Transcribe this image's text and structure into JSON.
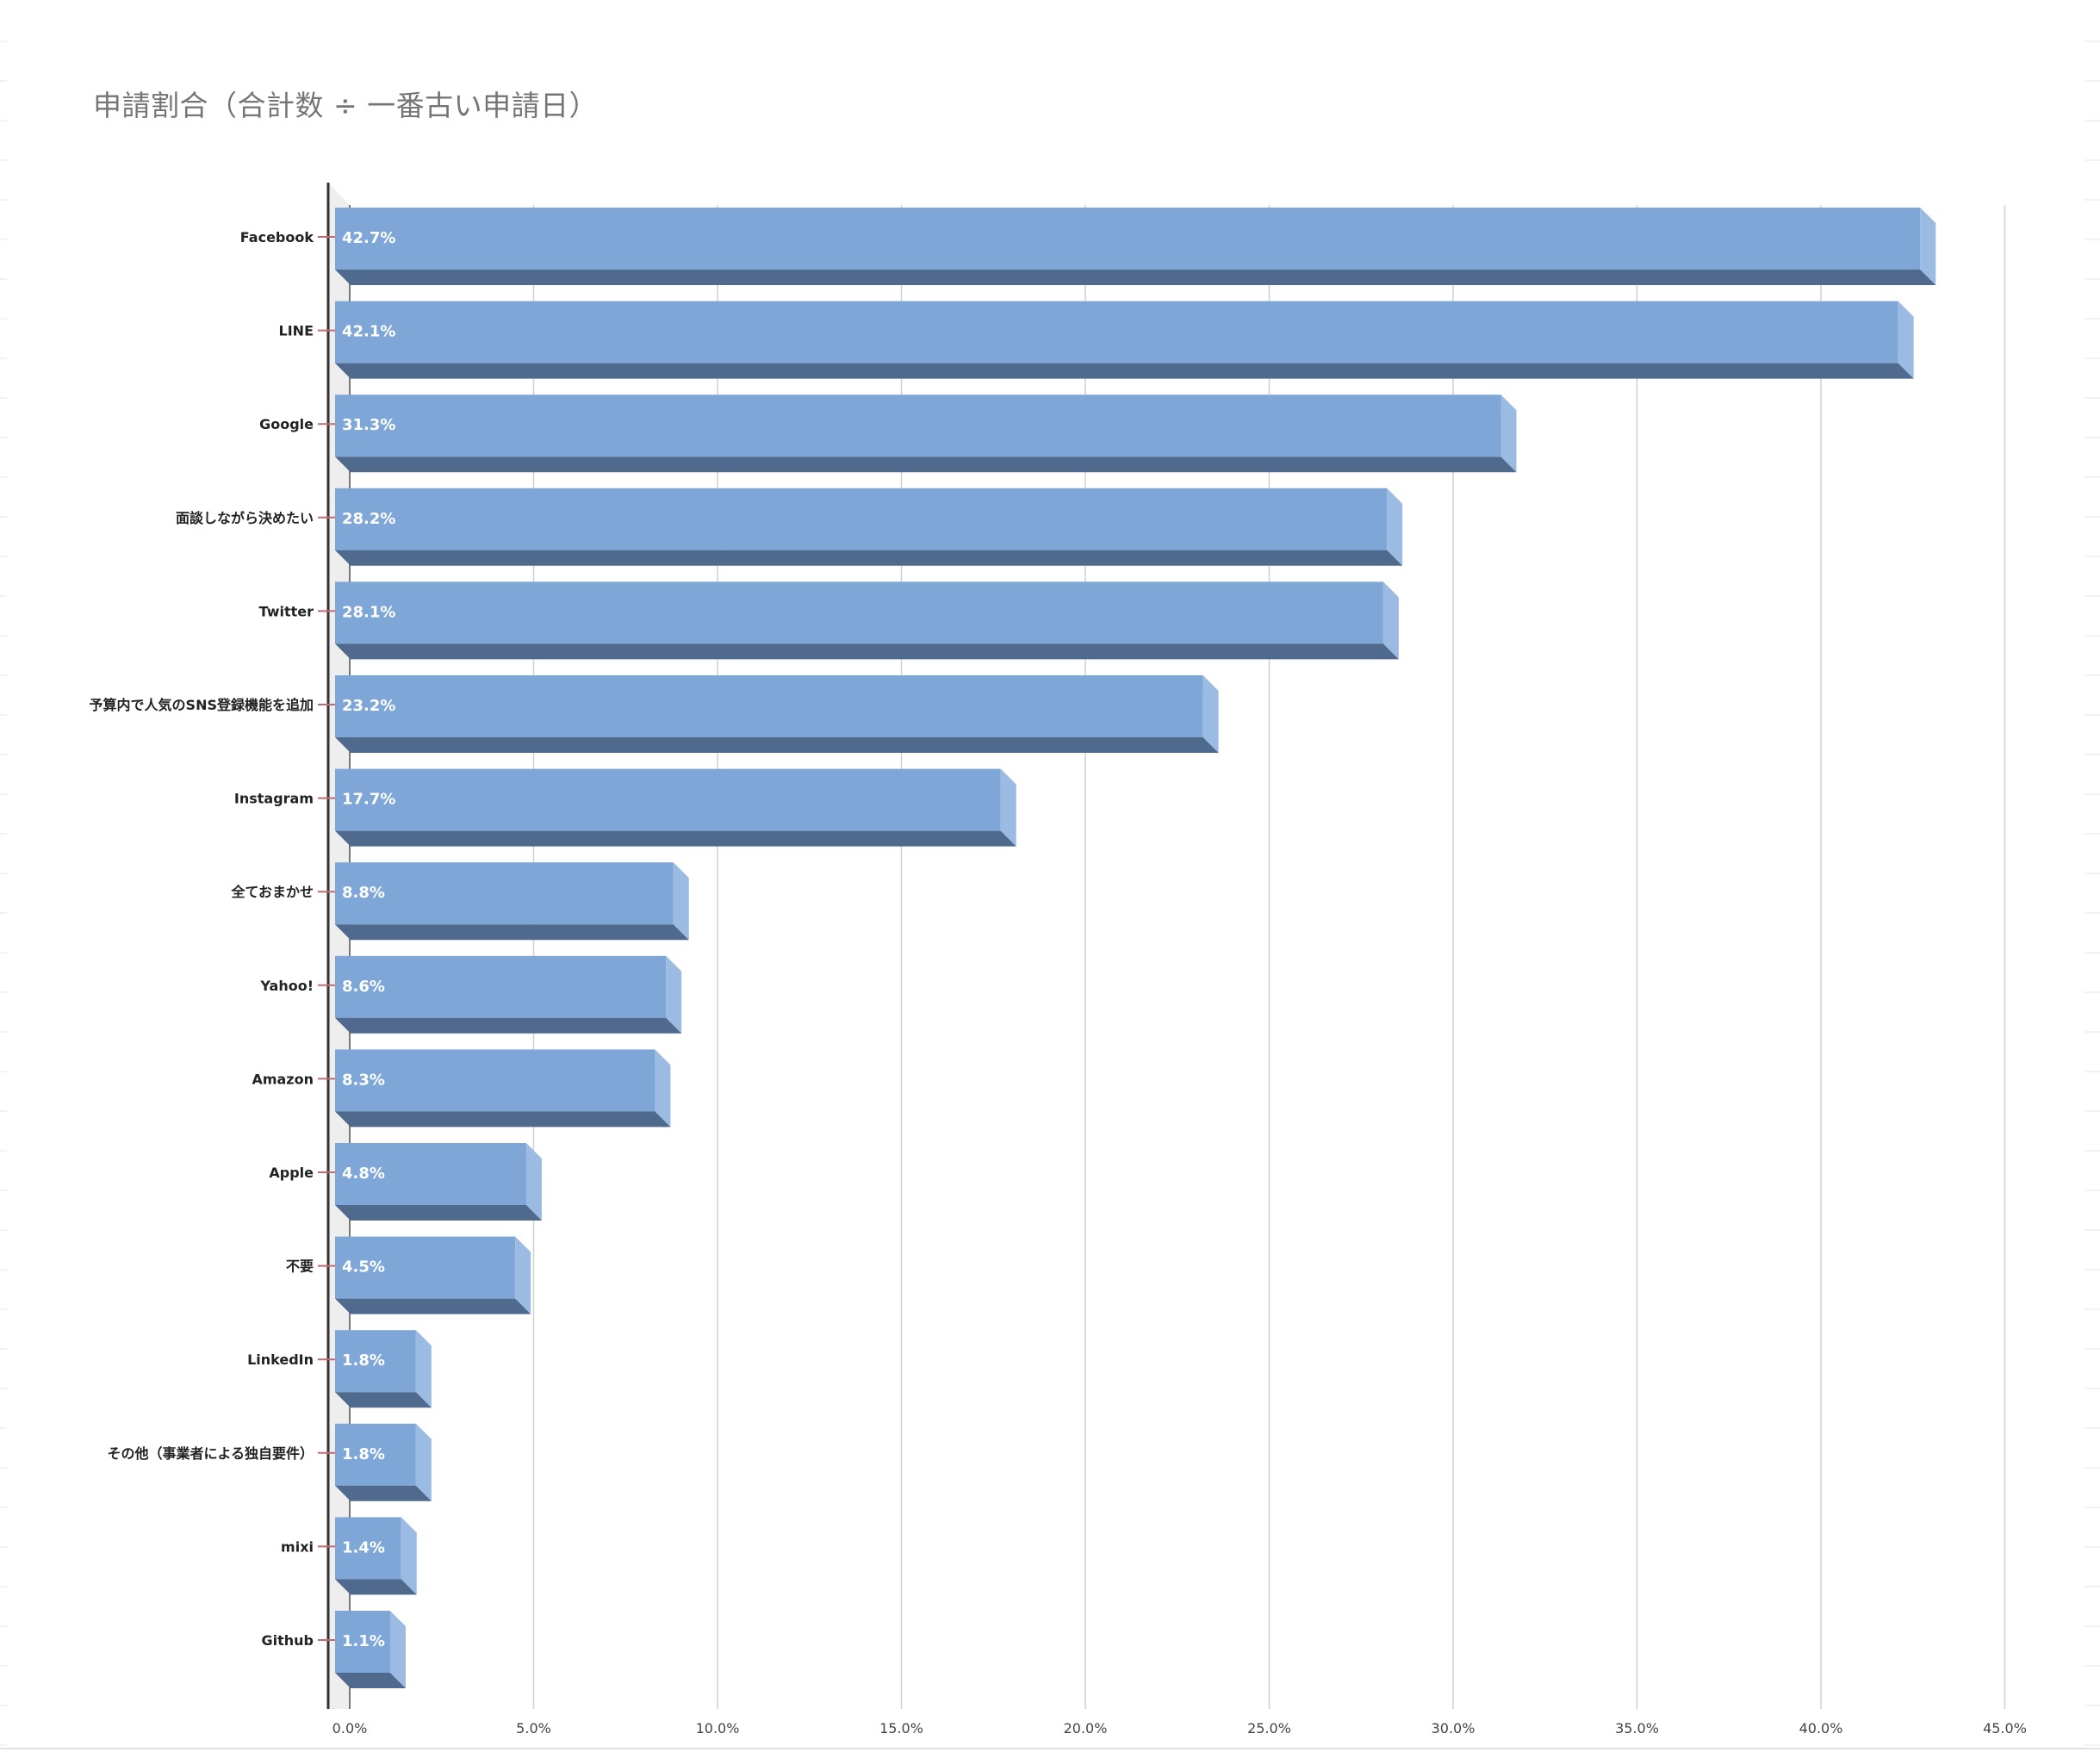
{
  "chart_data": {
    "type": "bar",
    "orientation": "horizontal",
    "style": "3d",
    "title": "申請割合（合計数 ÷ 一番古い申請日）",
    "xlabel": "",
    "ylabel": "",
    "categories": [
      "Facebook",
      "LINE",
      "Google",
      "面談しながら決めたい",
      "Twitter",
      "予算内で人気のSNS登録機能を追加",
      "Instagram",
      "全ておまかせ",
      "Yahoo!",
      "Amazon",
      "Apple",
      "不要",
      "LinkedIn",
      "その他（事業者による独自要件）",
      "mixi",
      "Github"
    ],
    "values": [
      42.7,
      42.1,
      31.3,
      28.2,
      28.1,
      23.2,
      17.7,
      8.8,
      8.6,
      8.3,
      4.8,
      4.5,
      1.8,
      1.8,
      1.4,
      1.1
    ],
    "value_labels": [
      "42.7%",
      "42.1%",
      "31.3%",
      "28.2%",
      "28.1%",
      "23.2%",
      "17.7%",
      "8.8%",
      "8.6%",
      "8.3%",
      "4.8%",
      "4.5%",
      "1.8%",
      "1.8%",
      "1.4%",
      "1.1%"
    ],
    "xlim": [
      0,
      45
    ],
    "x_ticks": [
      0,
      5,
      10,
      15,
      20,
      25,
      30,
      35,
      40,
      45
    ],
    "x_tick_labels": [
      "0.0%",
      "5.0%",
      "10.0%",
      "15.0%",
      "20.0%",
      "25.0%",
      "30.0%",
      "35.0%",
      "40.0%",
      "45.0%"
    ],
    "grid": true,
    "legend": "none",
    "colors": {
      "bar_front": "#7ea7d8",
      "bar_side": "#9bbbe3",
      "bar_bottom": "#4f6a8c",
      "grid": "#d0d0d0",
      "axis": "#333333",
      "title": "#757575"
    }
  }
}
